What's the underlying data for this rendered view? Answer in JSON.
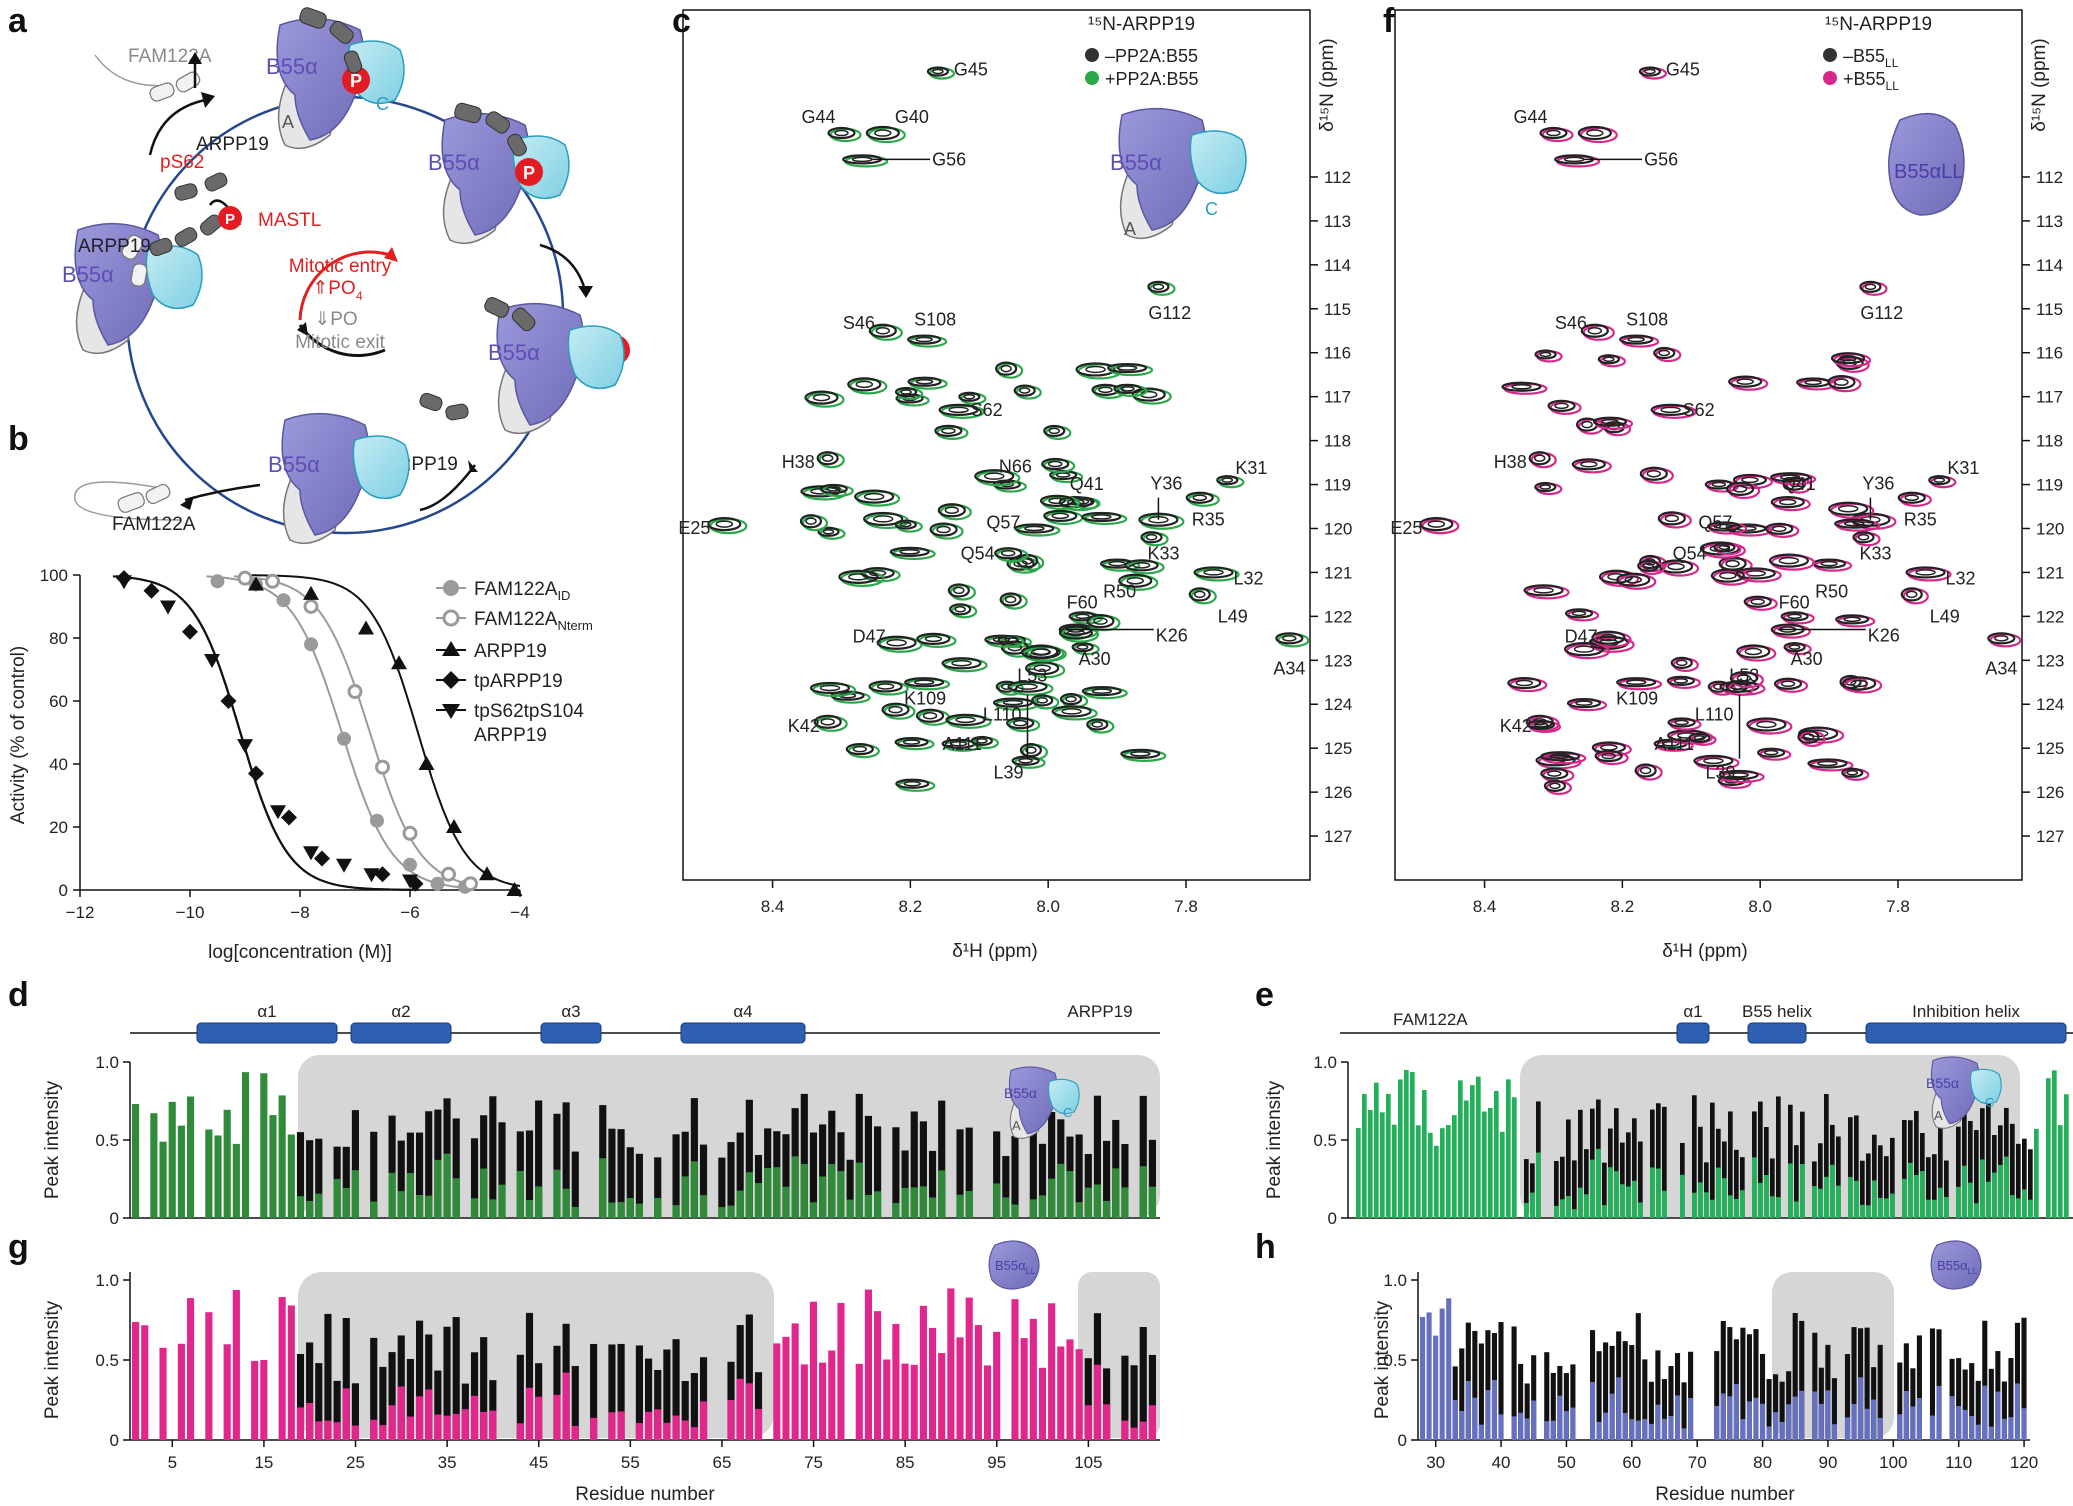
{
  "figure": {
    "panels": {
      "a": "a",
      "b": "b",
      "c": "c",
      "d": "d",
      "e": "e",
      "f": "f",
      "g": "g",
      "h": "h"
    }
  },
  "panel_a": {
    "labels": {
      "fam122a_top": "FAM122A",
      "b55a_1": "B55α",
      "b55a_2": "B55α",
      "b55a_3": "B55α",
      "b55a_4": "B55α",
      "b55a_5": "B55α",
      "arpp19_1": "ARPP19",
      "arpp19_2": "ARPP19",
      "arpp19_3": "ARPP19",
      "ps62": "pS62",
      "mastl": "MASTL",
      "p1": "P",
      "p2": "P",
      "p3": "P",
      "p4": "P",
      "a_sub": "A",
      "c_sub": "C",
      "mitotic_entry": "Mitotic entry",
      "po4_up": "⇑PO",
      "po4_down": "⇓PO",
      "mitotic_exit": "Mitotic exit",
      "sub4": "4",
      "fam122a_bottom": "FAM122A"
    }
  },
  "panel_b": {
    "chart_data": {
      "type": "scatter",
      "xlabel": "log[concentration (M)]",
      "ylabel": "Activity (% of control)",
      "xlim": [
        -12,
        -4
      ],
      "ylim": [
        0,
        100
      ],
      "xticks": [
        "-12",
        "-10",
        "-8",
        "-6",
        "-4"
      ],
      "yticks": [
        "0",
        "20",
        "40",
        "60",
        "80",
        "100"
      ],
      "series": [
        {
          "name": "FAM122A",
          "sub": "ID",
          "marker": "circle-filled",
          "color": "#9a9a9a",
          "x": [
            -9.5,
            -8.8,
            -8.3,
            -7.8,
            -7.2,
            -6.6,
            -6.0,
            -5.5,
            -5.0
          ],
          "y": [
            98,
            97,
            92,
            78,
            48,
            22,
            8,
            2,
            1
          ]
        },
        {
          "name": "FAM122A",
          "sub": "Nterm",
          "marker": "circle-open",
          "color": "#9a9a9a",
          "x": [
            -9.0,
            -8.5,
            -7.8,
            -7.0,
            -6.5,
            -6.0,
            -5.3,
            -4.9
          ],
          "y": [
            99,
            98,
            90,
            63,
            39,
            18,
            5,
            2
          ]
        },
        {
          "name": "ARPP19",
          "marker": "triangle-up",
          "color": "#111111",
          "x": [
            -8.8,
            -7.8,
            -6.8,
            -6.2,
            -5.7,
            -5.2,
            -4.6,
            -4.1
          ],
          "y": [
            97,
            94,
            83,
            72,
            40,
            20,
            5,
            0
          ]
        },
        {
          "name": "tpARPP19",
          "marker": "diamond",
          "color": "#111111",
          "x": [
            -11.2,
            -10.7,
            -10.0,
            -9.3,
            -8.8,
            -8.2,
            -7.6,
            -6.5,
            -5.9
          ],
          "y": [
            99,
            95,
            82,
            60,
            37,
            23,
            10,
            5,
            2
          ]
        },
        {
          "name": "tpS62tpS104",
          "name2": "ARPP19",
          "marker": "triangle-down",
          "color": "#111111",
          "x": [
            -11.2,
            -10.4,
            -9.6,
            -9.0,
            -8.4,
            -7.8,
            -7.2,
            -6.7,
            -6.0
          ],
          "y": [
            98,
            90,
            73,
            46,
            25,
            12,
            8,
            5,
            3
          ]
        }
      ]
    }
  },
  "panel_c": {
    "legend_title": "¹⁵N-ARPP19",
    "legend_items": [
      "–PP2A:B55",
      "+PP2A:B55"
    ],
    "legend_colors": [
      "#333333",
      "#2aa84a"
    ],
    "xlabel": "δ¹H (ppm)",
    "ylabel": "δ¹⁵N (ppm)",
    "b55": "B55α",
    "a": "A",
    "c": "C",
    "xticks": [
      "8.4",
      "8.2",
      "8.0",
      "7.8"
    ],
    "yticks": [
      "112",
      "113",
      "114",
      "115",
      "116",
      "117",
      "118",
      "119",
      "120",
      "121",
      "122",
      "123",
      "124",
      "125",
      "126",
      "127"
    ],
    "peaks": [
      "G45",
      "G44",
      "G40",
      "G56",
      "G112",
      "S46",
      "S108",
      "S62",
      "H38",
      "N66",
      "Q41",
      "Y36",
      "K31",
      "R35",
      "E25",
      "Q57",
      "K33",
      "Q54",
      "R50",
      "L32",
      "L49",
      "F60",
      "K26",
      "D47",
      "A30",
      "A34",
      "L53",
      "K109",
      "L110",
      "K42",
      "A111",
      "L39"
    ]
  },
  "panel_f": {
    "legend_title": "¹⁵N-ARPP19",
    "legend_items": [
      "–B55",
      "+B55"
    ],
    "legend_sub": "LL",
    "legend_colors": [
      "#333333",
      "#d6288a"
    ],
    "xlabel": "δ¹H (ppm)",
    "ylabel": "δ¹⁵N (ppm)",
    "b55ll": "B55αLL",
    "xticks": [
      "8.4",
      "8.2",
      "8.0",
      "7.8"
    ],
    "yticks": [
      "112",
      "113",
      "114",
      "115",
      "116",
      "117",
      "118",
      "119",
      "120",
      "121",
      "122",
      "123",
      "124",
      "125",
      "126",
      "127"
    ],
    "peaks": [
      "G45",
      "G44",
      "G56",
      "G112",
      "S46",
      "S108",
      "S62",
      "H38",
      "Y36",
      "K31",
      "Q41",
      "R35",
      "E25",
      "Q57",
      "K33",
      "Q54",
      "R50",
      "L32",
      "L49",
      "F60",
      "K26",
      "D47",
      "A30",
      "A34",
      "L53",
      "K109",
      "L110",
      "K42",
      "A111",
      "L39"
    ]
  },
  "panel_d": {
    "protein": "ARPP19",
    "helices": [
      "α1",
      "α2",
      "α3",
      "α4"
    ],
    "ylabel": "Peak intensity",
    "yticks": [
      "0",
      "0.5",
      "1.0"
    ],
    "b55": "B55α",
    "a": "A",
    "c": "C"
  },
  "panel_g": {
    "ylabel": "Peak intensity",
    "xlabel": "Residue number",
    "yticks": [
      "0",
      "0.5",
      "1.0"
    ],
    "xticks": [
      "5",
      "15",
      "25",
      "35",
      "45",
      "55",
      "65",
      "75",
      "85",
      "95",
      "105"
    ],
    "b55ll": "B55α",
    "ll": "LL"
  },
  "panel_e": {
    "protein": "FAM122A",
    "helices": [
      "α1",
      "B55 helix",
      "Inhibition helix"
    ],
    "ylabel": "Peak intensity",
    "yticks": [
      "0",
      "0.5",
      "1.0"
    ],
    "b55": "B55α",
    "a": "A",
    "c": "C"
  },
  "panel_h": {
    "ylabel": "Peak intensity",
    "xlabel": "Residue number",
    "yticks": [
      "0",
      "0.5",
      "1.0"
    ],
    "xticks": [
      "30",
      "40",
      "50",
      "60",
      "70",
      "80",
      "90",
      "100",
      "110",
      "120"
    ],
    "b55ll": "B55α",
    "ll": "LL"
  },
  "colors": {
    "green_d": "#2f8a3a",
    "green_e": "#22b05a",
    "magenta": "#e0288c",
    "purple": "#6670c0",
    "black": "#111111",
    "shade": "#d6d6d6",
    "helix": "#2e5fb0",
    "b55": "#8a86d0",
    "cblue": "#8fd6e6"
  }
}
